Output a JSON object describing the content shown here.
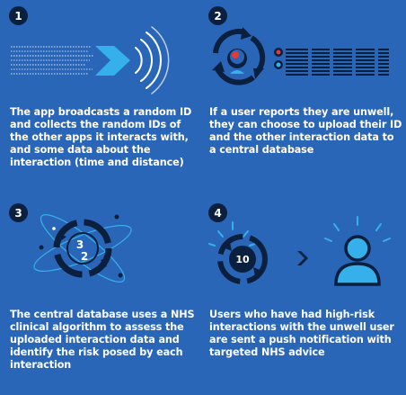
{
  "colors": {
    "background": "#2a66b8",
    "navy": "#0b1f3f",
    "accent_light": "#36b0ea",
    "white": "#ffffff",
    "alert_red": "#e53935"
  },
  "steps": [
    {
      "number": "1",
      "text": "The app broadcasts a random ID and collects the random IDs of the other apps it interacts with, and some data about the interaction (time and distance)",
      "icons": [
        "data-stream-icon",
        "broadcast-arrow-icon",
        "signal-waves-icon"
      ]
    },
    {
      "number": "2",
      "text": "If a user reports they are unwell, they can choose to upload their ID and the other interaction data to a central database",
      "icons": [
        "user-upload-cycle-icon",
        "data-records-icon"
      ]
    },
    {
      "number": "3",
      "text": "The central database uses a NHS clinical algorithm to assess the uploaded interaction data and identify the risk posed by each interaction",
      "icons": [
        "algorithm-orbit-icon"
      ],
      "digits": [
        "3",
        "2"
      ]
    },
    {
      "number": "4",
      "text": "Users who have had high-risk interactions with the unwell user are sent a push notification with targeted NHS advice",
      "icons": [
        "risk-score-icon",
        "chevron-right-icon",
        "notified-user-icon"
      ],
      "risk_value": "10"
    }
  ]
}
